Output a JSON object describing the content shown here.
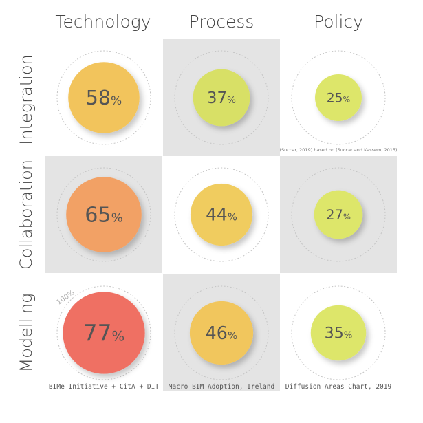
{
  "chart_data": {
    "type": "bubble-matrix",
    "columns": [
      "Technology",
      "Process",
      "Policy"
    ],
    "rows": [
      "Integration",
      "Collaboration",
      "Modelling"
    ],
    "reference_label": "100%",
    "cells": [
      {
        "row": "Integration",
        "column": "Technology",
        "value": 58,
        "label": "58%",
        "color": "#F2C45C"
      },
      {
        "row": "Integration",
        "column": "Process",
        "value": 37,
        "label": "37%",
        "color": "#D8E066"
      },
      {
        "row": "Integration",
        "column": "Policy",
        "value": 25,
        "label": "25%",
        "color": "#DDE66A"
      },
      {
        "row": "Collaboration",
        "column": "Technology",
        "value": 65,
        "label": "65%",
        "color": "#F2A165"
      },
      {
        "row": "Collaboration",
        "column": "Process",
        "value": 44,
        "label": "44%",
        "color": "#F0CC5E"
      },
      {
        "row": "Collaboration",
        "column": "Policy",
        "value": 27,
        "label": "27%",
        "color": "#DDE66A"
      },
      {
        "row": "Modelling",
        "column": "Technology",
        "value": 77,
        "label": "77%",
        "color": "#EF6F63"
      },
      {
        "row": "Modelling",
        "column": "Process",
        "value": 46,
        "label": "46%",
        "color": "#F1C65D"
      },
      {
        "row": "Modelling",
        "column": "Policy",
        "value": 35,
        "label": "35%",
        "color": "#DDE66A"
      }
    ],
    "footers": [
      "BIMe Initiative + CitA + DIT",
      "Macro BIM Adoption, Ireland",
      "Diffusion Areas Chart, 2019"
    ],
    "source_note": "(Succar, 2019) based on (Succar and Kassem, 2015)"
  }
}
